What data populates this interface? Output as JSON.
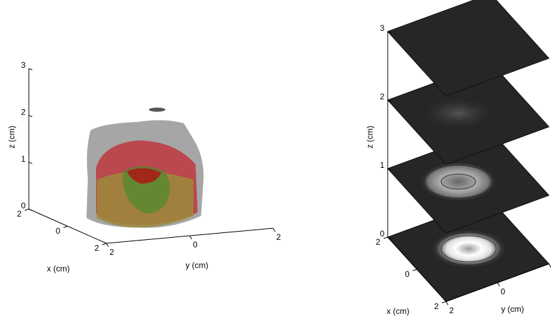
{
  "chart_data": [
    {
      "type": "isosurface3d",
      "xlabel": "x (cm)",
      "ylabel": "y (cm)",
      "zlabel": "z (cm)",
      "xlim": [
        -2,
        2
      ],
      "ylim": [
        -2,
        2
      ],
      "zlim": [
        0,
        3
      ],
      "xticks": [
        {
          "value": -2,
          "label": "2"
        },
        0,
        2
      ],
      "yticks": [
        {
          "value": -2,
          "label": "2"
        },
        0,
        2
      ],
      "zticks": [
        0,
        1,
        2,
        3
      ]
    },
    {
      "type": "slices3d",
      "xlabel": "x (cm)",
      "ylabel": "y (cm)",
      "zlabel": "z (cm)",
      "xlim": [
        -2,
        2
      ],
      "ylim": [
        -2,
        2
      ],
      "zlim": [
        0,
        3
      ],
      "xticks": [
        {
          "value": -2,
          "label": "2"
        },
        0,
        2
      ],
      "yticks": [
        {
          "value": -2,
          "label": "2"
        },
        0,
        2
      ],
      "zticks": [
        0,
        1,
        2,
        3
      ]
    }
  ]
}
